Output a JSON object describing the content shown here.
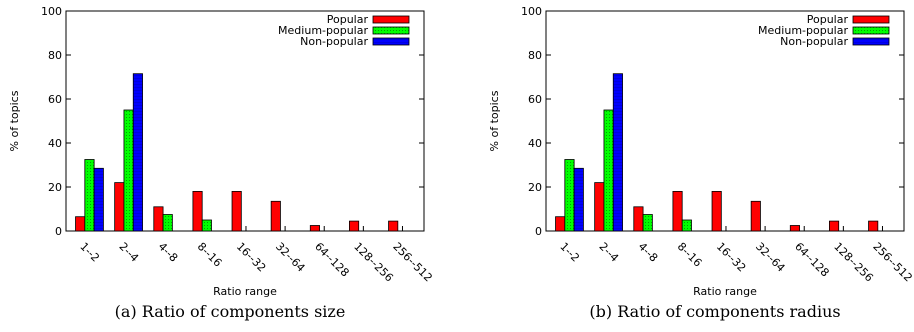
{
  "chart_data": [
    {
      "type": "bar",
      "panel": "a",
      "caption": "(a) Ratio of components size",
      "xlabel": "Ratio range",
      "ylabel": "% of topics",
      "ylim": [
        0,
        100
      ],
      "yticks": [
        "0",
        "20",
        "40",
        "60",
        "80",
        "100"
      ],
      "categories": [
        "1--2",
        "2--4",
        "4--8",
        "8--16",
        "16--32",
        "32--64",
        "64--128",
        "128--256",
        "256--512"
      ],
      "legend_position": "top-right",
      "series": [
        {
          "name": "Popular",
          "color": "#ff0000",
          "values": [
            6.5,
            22,
            11,
            18,
            18,
            13.5,
            2.5,
            4.5,
            4.5
          ]
        },
        {
          "name": "Medium-popular",
          "color": "#00ff00",
          "values": [
            32.5,
            55,
            7.5,
            5,
            0,
            0,
            0,
            0,
            0
          ]
        },
        {
          "name": "Non-popular",
          "color": "#0000ff",
          "values": [
            28.5,
            71.5,
            0,
            0,
            0,
            0,
            0,
            0,
            0
          ]
        }
      ]
    },
    {
      "type": "bar",
      "panel": "b",
      "caption": "(b) Ratio of components radius",
      "xlabel": "Ratio range",
      "ylabel": "% of topics",
      "ylim": [
        0,
        100
      ],
      "yticks": [
        "0",
        "20",
        "40",
        "60",
        "80",
        "100"
      ],
      "categories": [
        "1--2",
        "2--4",
        "4--8",
        "8--16",
        "16--32",
        "32--64",
        "64--128",
        "128--256",
        "256--512"
      ],
      "legend_position": "top-right",
      "series": [
        {
          "name": "Popular",
          "color": "#ff0000",
          "values": [
            6.5,
            22,
            11,
            18,
            18,
            13.5,
            2.5,
            4.5,
            4.5
          ]
        },
        {
          "name": "Medium-popular",
          "color": "#00ff00",
          "values": [
            32.5,
            55,
            7.5,
            5,
            0,
            0,
            0,
            0,
            0
          ]
        },
        {
          "name": "Non-popular",
          "color": "#0000ff",
          "values": [
            28.5,
            71.5,
            0,
            0,
            0,
            0,
            0,
            0,
            0
          ]
        }
      ]
    }
  ]
}
